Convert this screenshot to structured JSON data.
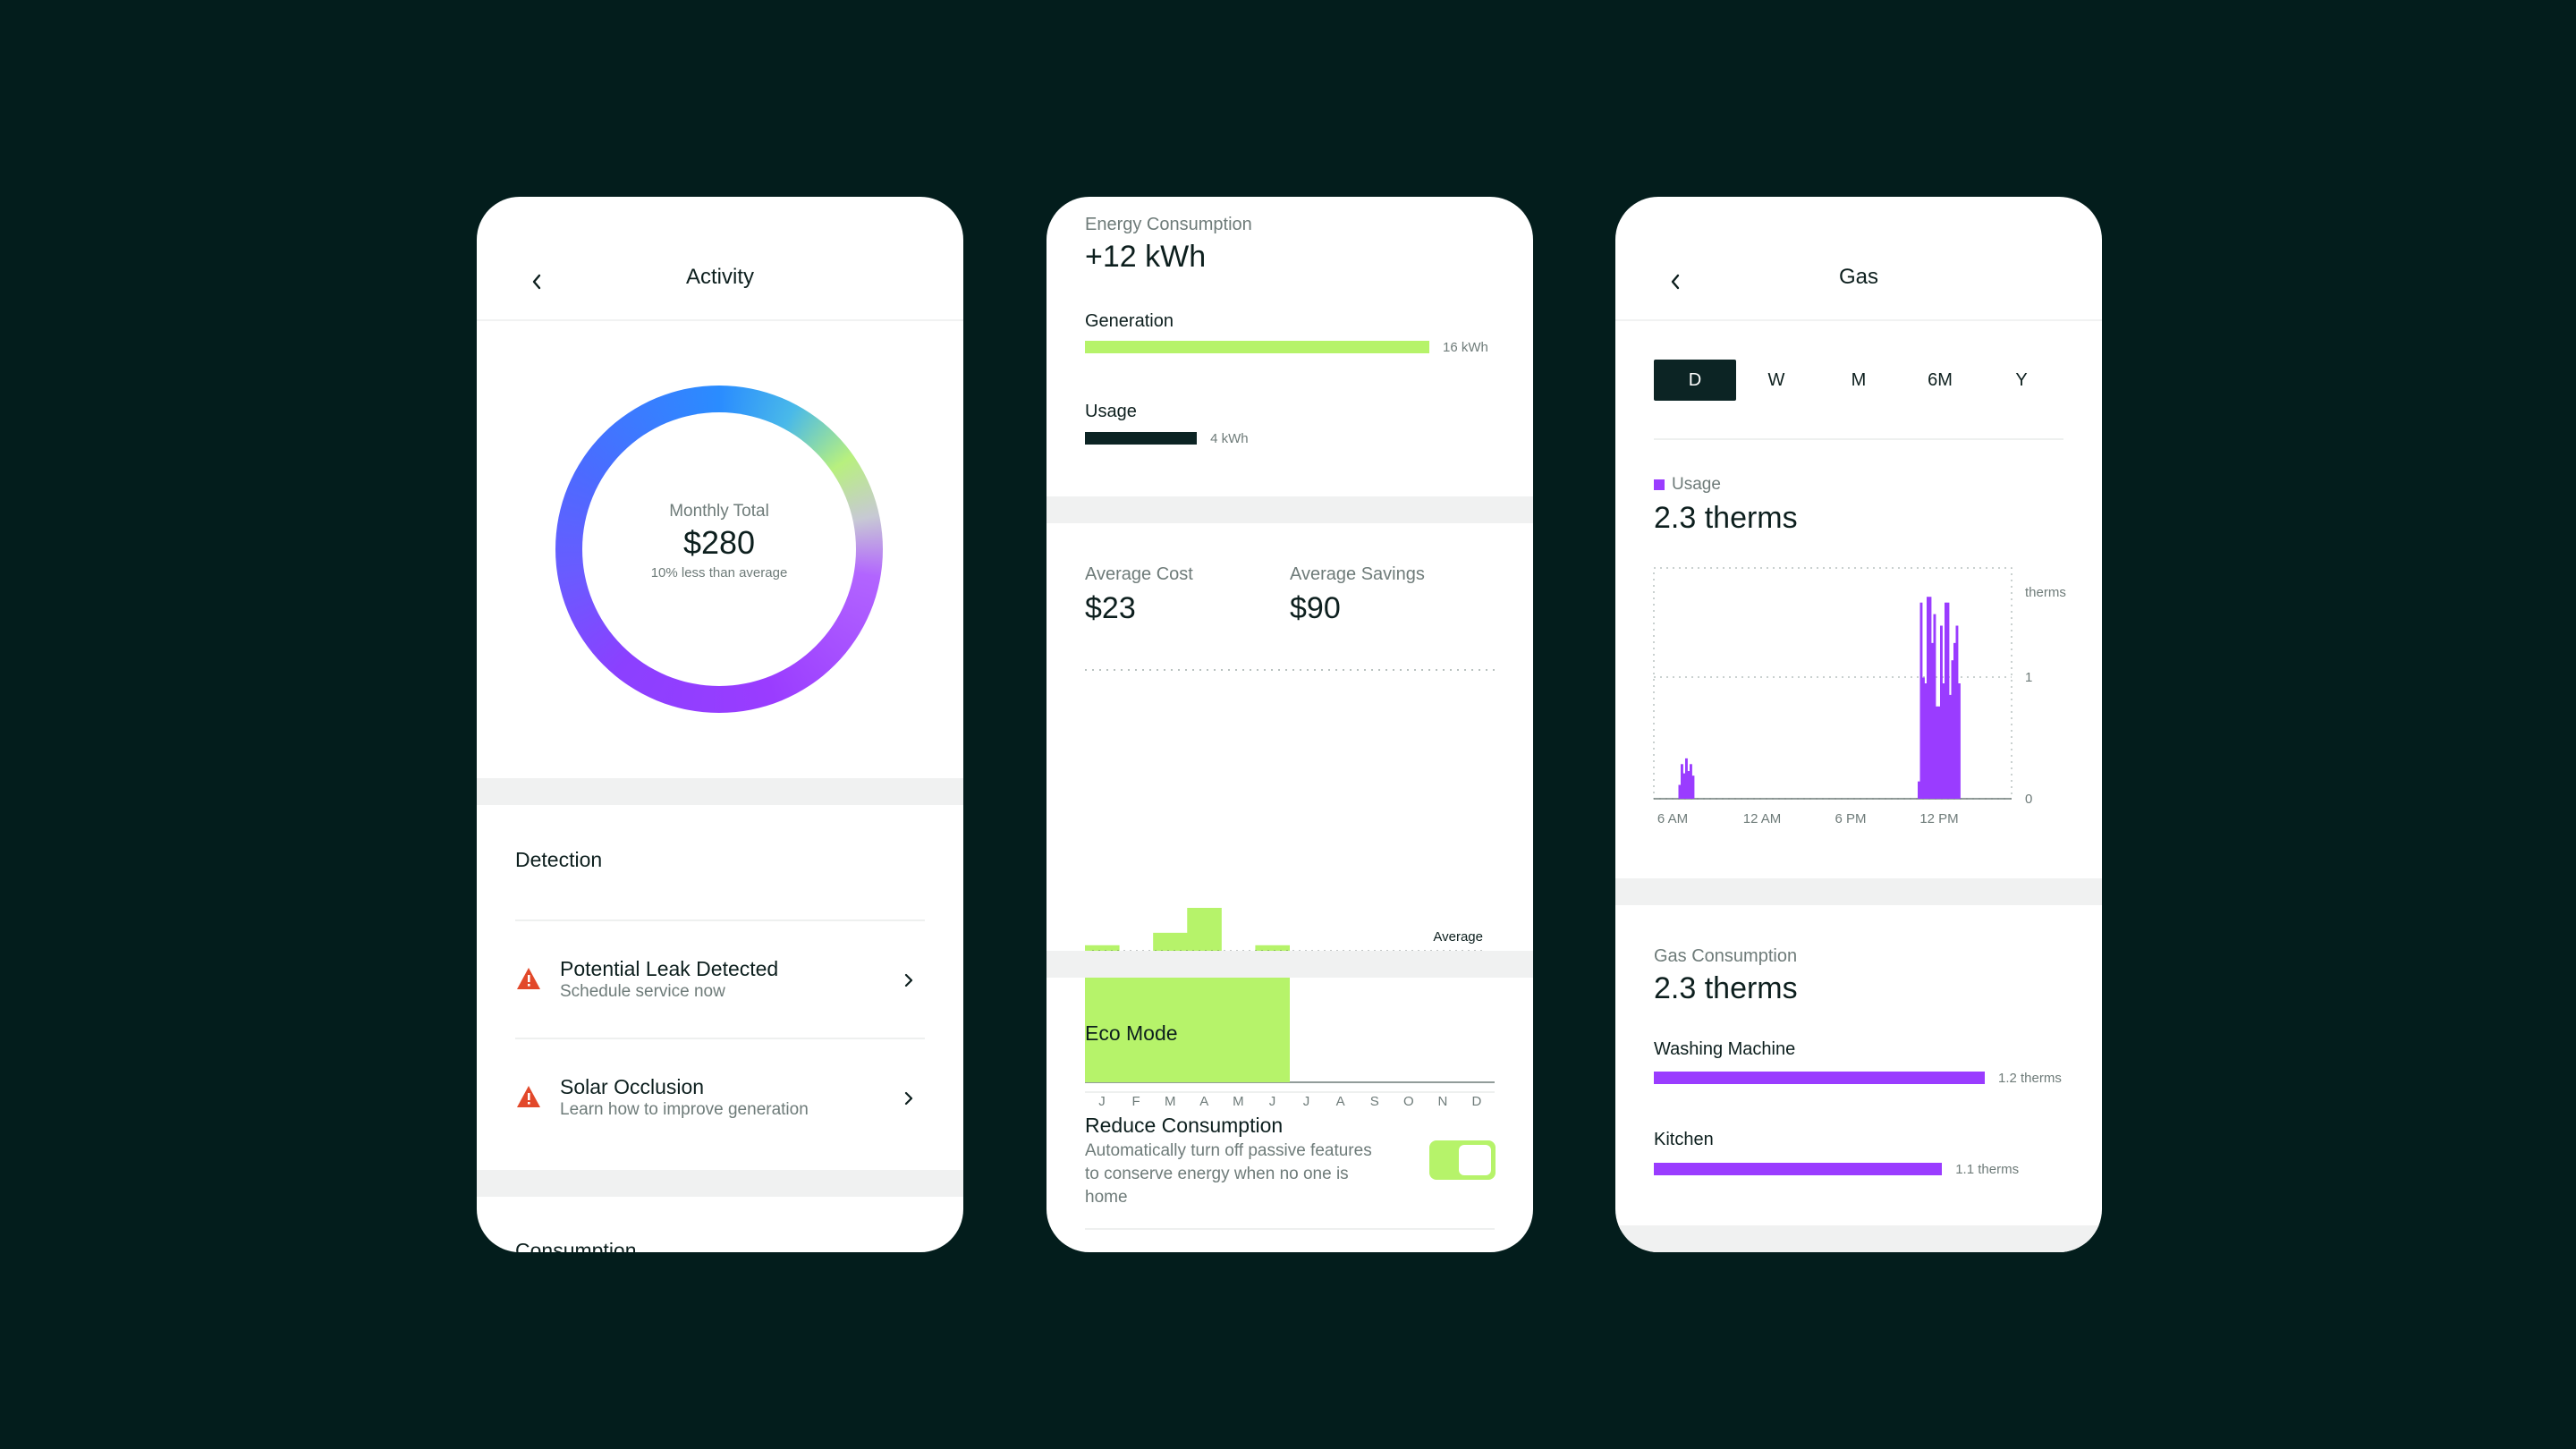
{
  "activity": {
    "title": "Activity",
    "ring": {
      "label": "Monthly Total",
      "value": "$280",
      "note": "10% less than average"
    },
    "detection": {
      "heading": "Detection",
      "items": [
        {
          "title": "Potential Leak Detected",
          "subtitle": "Schedule service now"
        },
        {
          "title": "Solar Occlusion",
          "subtitle": "Learn how to improve generation"
        }
      ]
    },
    "next_section": "Consumption"
  },
  "energy": {
    "header_label": "Energy Consumption",
    "header_value": "+12 kWh",
    "generation": {
      "label": "Generation",
      "value": "16 kWh",
      "kwh": 16
    },
    "usage": {
      "label": "Usage",
      "value": "4 kWh",
      "kwh": 4
    },
    "avg_cost": {
      "label": "Average Cost",
      "value": "$23"
    },
    "avg_savings": {
      "label": "Average Savings",
      "value": "$90"
    },
    "eco_mode": {
      "heading": "Eco Mode",
      "option_title": "Reduce Consumption",
      "option_desc": "Automatically turn off passive features to conserve energy when no one is home",
      "toggle_on": true
    }
  },
  "gas": {
    "title": "Gas",
    "tabs": [
      "D",
      "W",
      "M",
      "6M",
      "Y"
    ],
    "active_tab": "D",
    "usage_label": "Usage",
    "usage_value": "2.3 therms",
    "consumption_label": "Gas Consumption",
    "consumption_value": "2.3 therms",
    "breakdown": [
      {
        "label": "Washing Machine",
        "value": "1.2 therms",
        "therms": 1.2
      },
      {
        "label": "Kitchen",
        "value": "1.1 therms",
        "therms": 1.1
      }
    ]
  },
  "colors": {
    "background": "#031d1c",
    "green": "#b6f36a",
    "purple": "#9a3cff",
    "dark": "#0c2424",
    "warning": "#e2482a"
  },
  "chart_data": [
    {
      "type": "bar",
      "categories": [
        "J",
        "F",
        "M",
        "A",
        "M",
        "J",
        "J",
        "A",
        "S",
        "O",
        "N",
        "D"
      ],
      "values": [
        1.1,
        0.9,
        1.2,
        1.4,
        0.9,
        1.1,
        null,
        null,
        null,
        null,
        null,
        null
      ],
      "reference_line": {
        "label": "Average",
        "value": 1.05
      },
      "ylim": [
        0,
        1.4
      ]
    },
    {
      "type": "bar",
      "title": "",
      "ylabel": "therms",
      "y_ticks": [
        "0",
        "1"
      ],
      "x_ticks": [
        "6 AM",
        "12 AM",
        "6 PM",
        "12 PM"
      ],
      "ylim": [
        0,
        2
      ],
      "series": [
        {
          "values": [
            0,
            0,
            0,
            0,
            0,
            0,
            0,
            0,
            0,
            0,
            0,
            0.12,
            0.3,
            0.22,
            0.35,
            0.24,
            0.3,
            0.2,
            0,
            0,
            0,
            0,
            0,
            0,
            0,
            0,
            0,
            0,
            0,
            0,
            0,
            0,
            0,
            0,
            0,
            0,
            0,
            0,
            0,
            0,
            0,
            0,
            0,
            0,
            0,
            0,
            0,
            0,
            0,
            0,
            0,
            0,
            0,
            0,
            0,
            0,
            0,
            0,
            0,
            0,
            0,
            0,
            0,
            0,
            0,
            0,
            0,
            0,
            0,
            0,
            0,
            0,
            0,
            0,
            0,
            0,
            0,
            0,
            0,
            0,
            0,
            0,
            0,
            0,
            0,
            0,
            0,
            0,
            0,
            0,
            0,
            0,
            0,
            0,
            0,
            0,
            0,
            0,
            0,
            0,
            0,
            0,
            0,
            0,
            0,
            0,
            0,
            0,
            0,
            0,
            0,
            0,
            0,
            0,
            0,
            0,
            0,
            0,
            0.15,
            1.7,
            1.05,
            1.0,
            1.75,
            1.75,
            1.35,
            1.6,
            0.8,
            0.8,
            1.5,
            1.0,
            1.7,
            1.7,
            0.9,
            1.2,
            1.35,
            1.5,
            1.0,
            0,
            0,
            0,
            0,
            0,
            0,
            0,
            0,
            0,
            0,
            0,
            0,
            0,
            0,
            0,
            0,
            0,
            0,
            0,
            0,
            0,
            0,
            0
          ]
        }
      ]
    }
  ]
}
